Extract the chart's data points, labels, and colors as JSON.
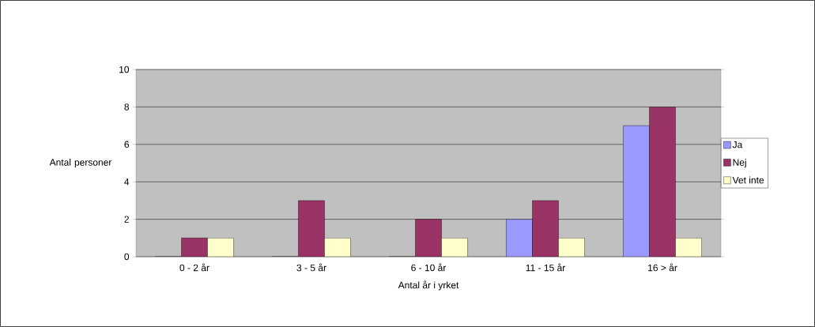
{
  "chart_data": {
    "type": "bar",
    "xlabel": "Antal år i yrket",
    "ylabel": "Antal personer",
    "categories": [
      "0 - 2 år",
      "3 - 5 år",
      "6 - 10 år",
      "11 - 15 år",
      "16 > år"
    ],
    "series": [
      {
        "name": "Ja",
        "color": "#9999ff",
        "values": [
          0,
          0,
          0,
          2,
          7
        ]
      },
      {
        "name": "Nej",
        "color": "#993366",
        "values": [
          1,
          3,
          2,
          3,
          8
        ]
      },
      {
        "name": "Vet inte",
        "color": "#ffffcc",
        "values": [
          1,
          1,
          1,
          1,
          1
        ]
      }
    ],
    "ylim": [
      0,
      10
    ],
    "yticks": [
      0,
      2,
      4,
      6,
      8,
      10
    ],
    "grid": "y",
    "legend": "right"
  }
}
